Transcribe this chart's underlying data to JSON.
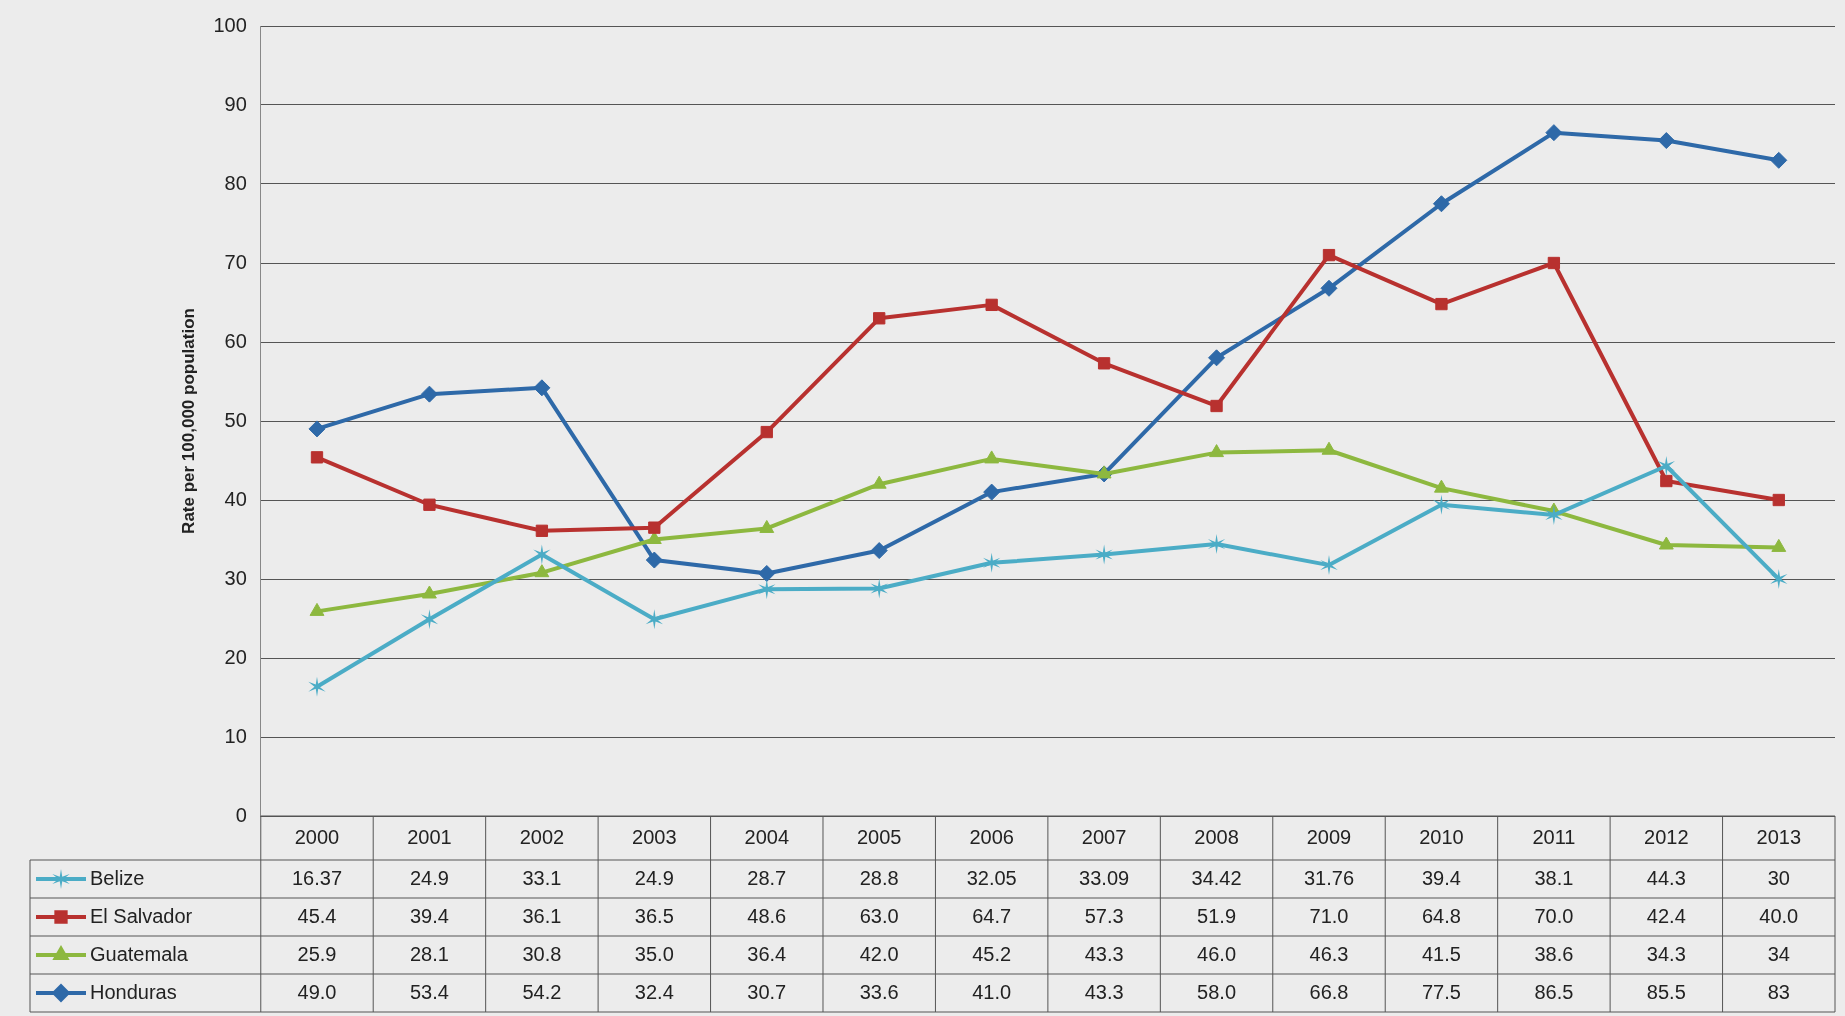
{
  "chart_data": {
    "type": "line",
    "ylabel": "Rate per 100,000 population",
    "categories": [
      "2000",
      "2001",
      "2002",
      "2003",
      "2004",
      "2005",
      "2006",
      "2007",
      "2008",
      "2009",
      "2010",
      "2011",
      "2012",
      "2013"
    ],
    "series": [
      {
        "name": "Belize",
        "color": "#4bacc6",
        "marker": "cross",
        "values": [
          16.37,
          24.9,
          33.1,
          24.9,
          28.7,
          28.8,
          32.05,
          33.09,
          34.42,
          31.76,
          39.4,
          38.1,
          44.3,
          30
        ],
        "value_labels": [
          "16.37",
          "24.9",
          "33.1",
          "24.9",
          "28.7",
          "28.8",
          "32.05",
          "33.09",
          "34.42",
          "31.76",
          "39.4",
          "38.1",
          "44.3",
          "30"
        ]
      },
      {
        "name": "El Salvador",
        "color": "#b8312f",
        "marker": "square",
        "values": [
          45.4,
          39.4,
          36.1,
          36.5,
          48.6,
          63.0,
          64.7,
          57.3,
          51.9,
          71.0,
          64.8,
          70.0,
          42.4,
          40.0
        ],
        "value_labels": [
          "45.4",
          "39.4",
          "36.1",
          "36.5",
          "48.6",
          "63.0",
          "64.7",
          "57.3",
          "51.9",
          "71.0",
          "64.8",
          "70.0",
          "42.4",
          "40.0"
        ]
      },
      {
        "name": "Guatemala",
        "color": "#8db83f",
        "marker": "triangle",
        "values": [
          25.9,
          28.1,
          30.8,
          35.0,
          36.4,
          42.0,
          45.2,
          43.3,
          46.0,
          46.3,
          41.5,
          38.6,
          34.3,
          34
        ],
        "value_labels": [
          "25.9",
          "28.1",
          "30.8",
          "35.0",
          "36.4",
          "42.0",
          "45.2",
          "43.3",
          "46.0",
          "46.3",
          "41.5",
          "38.6",
          "34.3",
          "34"
        ]
      },
      {
        "name": "Honduras",
        "color": "#2e69a8",
        "marker": "diamond",
        "values": [
          49.0,
          53.4,
          54.2,
          32.4,
          30.7,
          33.6,
          41.0,
          43.3,
          58.0,
          66.8,
          77.5,
          86.5,
          85.5,
          83
        ],
        "value_labels": [
          "49.0",
          "53.4",
          "54.2",
          "32.4",
          "30.7",
          "33.6",
          "41.0",
          "43.3",
          "58.0",
          "66.8",
          "77.5",
          "86.5",
          "85.5",
          "83"
        ]
      }
    ],
    "ylim": [
      0,
      100
    ],
    "yticks": [
      0,
      10,
      20,
      30,
      40,
      50,
      60,
      70,
      80,
      90,
      100
    ],
    "grid": "y",
    "legend": "bottom",
    "line_style": "solid"
  }
}
